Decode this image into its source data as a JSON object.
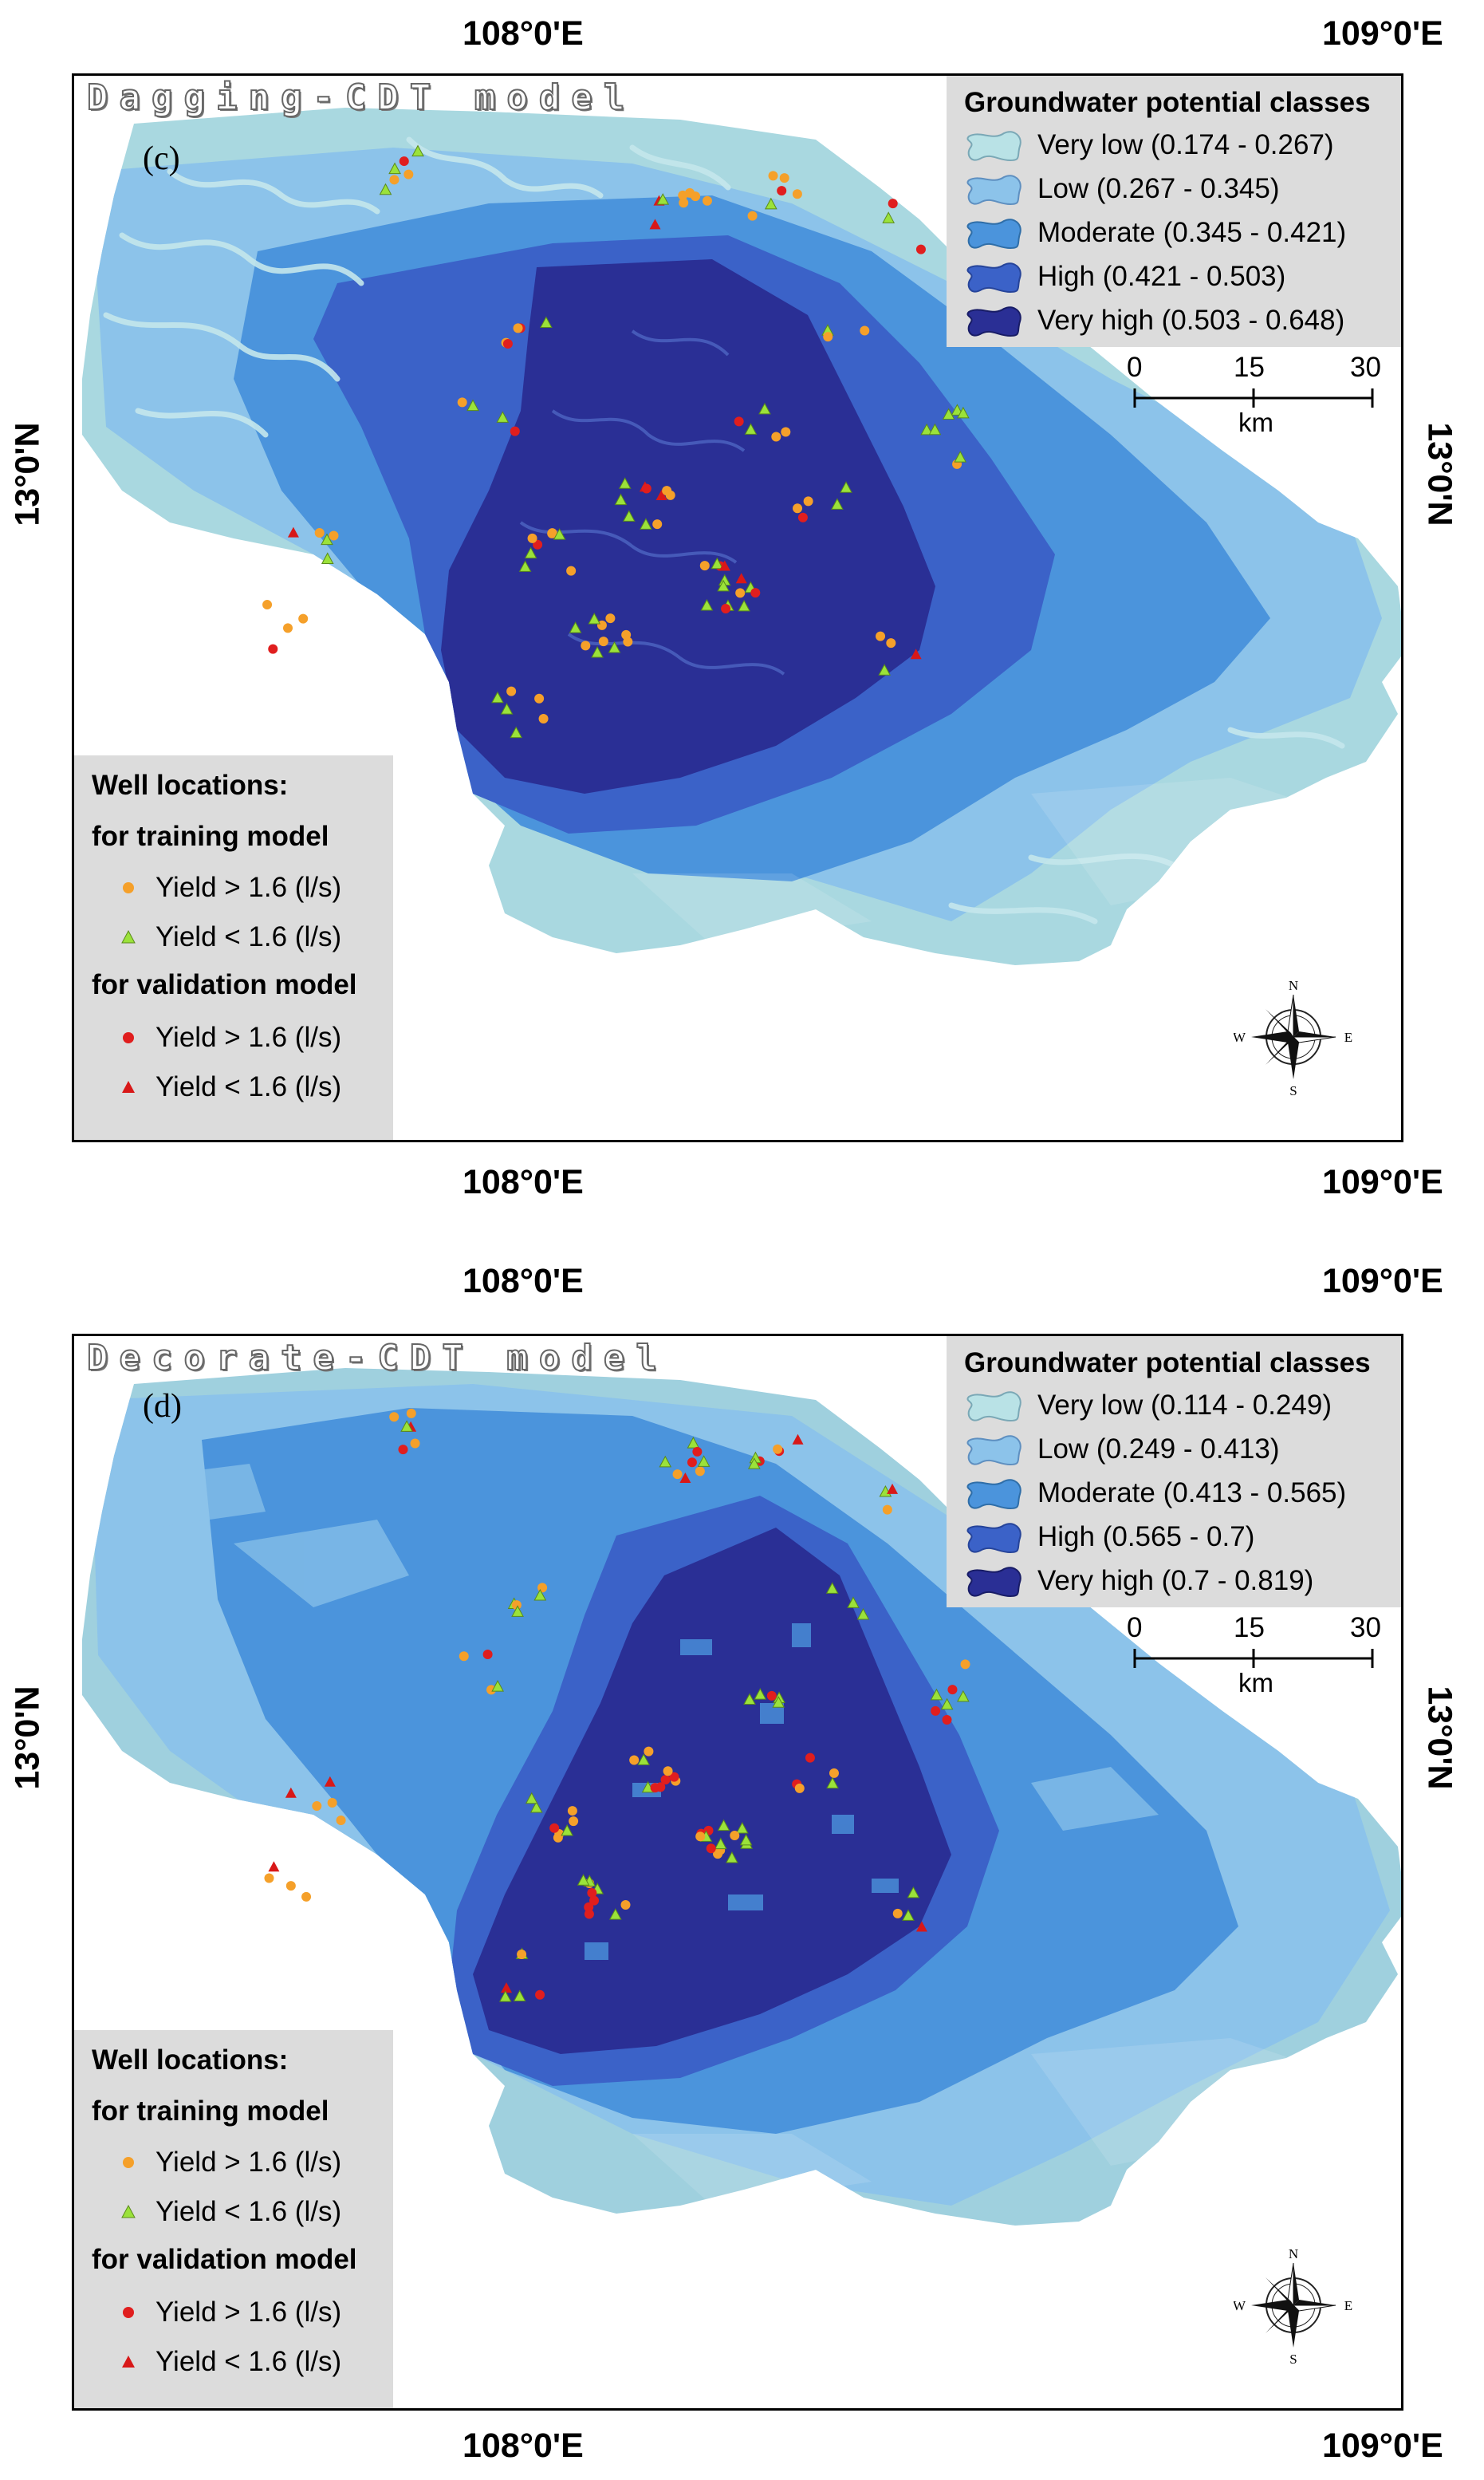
{
  "panels": [
    {
      "model_title": "Dagging-CDT model",
      "panel_letter": "(c)",
      "lon_labels": {
        "top_left": "108°0'E",
        "top_right": "109°0'E",
        "bottom_left": "108°0'E",
        "bottom_right": "109°0'E"
      },
      "lat_labels": {
        "left": "13°0'N",
        "right": "13°0'N"
      },
      "legend": {
        "title": "Groundwater potential classes",
        "classes": [
          {
            "label": "Very low (0.174 - 0.267)",
            "color": "#b9e2e6"
          },
          {
            "label": "Low (0.267 - 0.345)",
            "color": "#8cc3ea"
          },
          {
            "label": "Moderate (0.345 - 0.421)",
            "color": "#4b94dc"
          },
          {
            "label": "High (0.421 - 0.503)",
            "color": "#3b62c8"
          },
          {
            "label": "Very high (0.503 - 0.648)",
            "color": "#2a2f95"
          }
        ]
      },
      "scale": {
        "ticks": [
          "0",
          "15",
          "30"
        ],
        "unit": "km"
      },
      "wells": {
        "title": "Well locations:",
        "training_heading": "for training model",
        "validation_heading": "for validation model",
        "items": [
          {
            "group": "training",
            "symbol": "circle",
            "color": "#f5a02a",
            "label": "Yield > 1.6 (l/s)"
          },
          {
            "group": "training",
            "symbol": "triangle",
            "color": "#9be23a",
            "label": "Yield < 1.6 (l/s)"
          },
          {
            "group": "validation",
            "symbol": "circle",
            "color": "#e01e1e",
            "label": "Yield > 1.6 (l/s)"
          },
          {
            "group": "validation",
            "symbol": "triangle",
            "color": "#d81818",
            "label": "Yield < 1.6 (l/s)"
          }
        ]
      },
      "compass": {
        "n": "N",
        "s": "S",
        "e": "E",
        "w": "W"
      }
    },
    {
      "model_title": "Decorate-CDT model",
      "panel_letter": "(d)",
      "lon_labels": {
        "top_left": "108°0'E",
        "top_right": "109°0'E",
        "bottom_left": "108°0'E",
        "bottom_right": "109°0'E"
      },
      "lat_labels": {
        "left": "13°0'N",
        "right": "13°0'N"
      },
      "legend": {
        "title": "Groundwater potential classes",
        "classes": [
          {
            "label": "Very low (0.114 - 0.249)",
            "color": "#b9e2e6"
          },
          {
            "label": "Low (0.249 - 0.413)",
            "color": "#8cc3ea"
          },
          {
            "label": "Moderate (0.413 - 0.565)",
            "color": "#4b94dc"
          },
          {
            "label": "High (0.565 - 0.7)",
            "color": "#3b62c8"
          },
          {
            "label": "Very high (0.7 - 0.819)",
            "color": "#2a2f95"
          }
        ]
      },
      "scale": {
        "ticks": [
          "0",
          "15",
          "30"
        ],
        "unit": "km"
      },
      "wells": {
        "title": "Well locations:",
        "training_heading": "for training model",
        "validation_heading": "for validation model",
        "items": [
          {
            "group": "training",
            "symbol": "circle",
            "color": "#f5a02a",
            "label": "Yield > 1.6 (l/s)"
          },
          {
            "group": "training",
            "symbol": "triangle",
            "color": "#9be23a",
            "label": "Yield < 1.6 (l/s)"
          },
          {
            "group": "validation",
            "symbol": "circle",
            "color": "#e01e1e",
            "label": "Yield > 1.6 (l/s)"
          },
          {
            "group": "validation",
            "symbol": "triangle",
            "color": "#d81818",
            "label": "Yield < 1.6 (l/s)"
          }
        ]
      },
      "compass": {
        "n": "N",
        "s": "S",
        "e": "E",
        "w": "W"
      }
    }
  ]
}
